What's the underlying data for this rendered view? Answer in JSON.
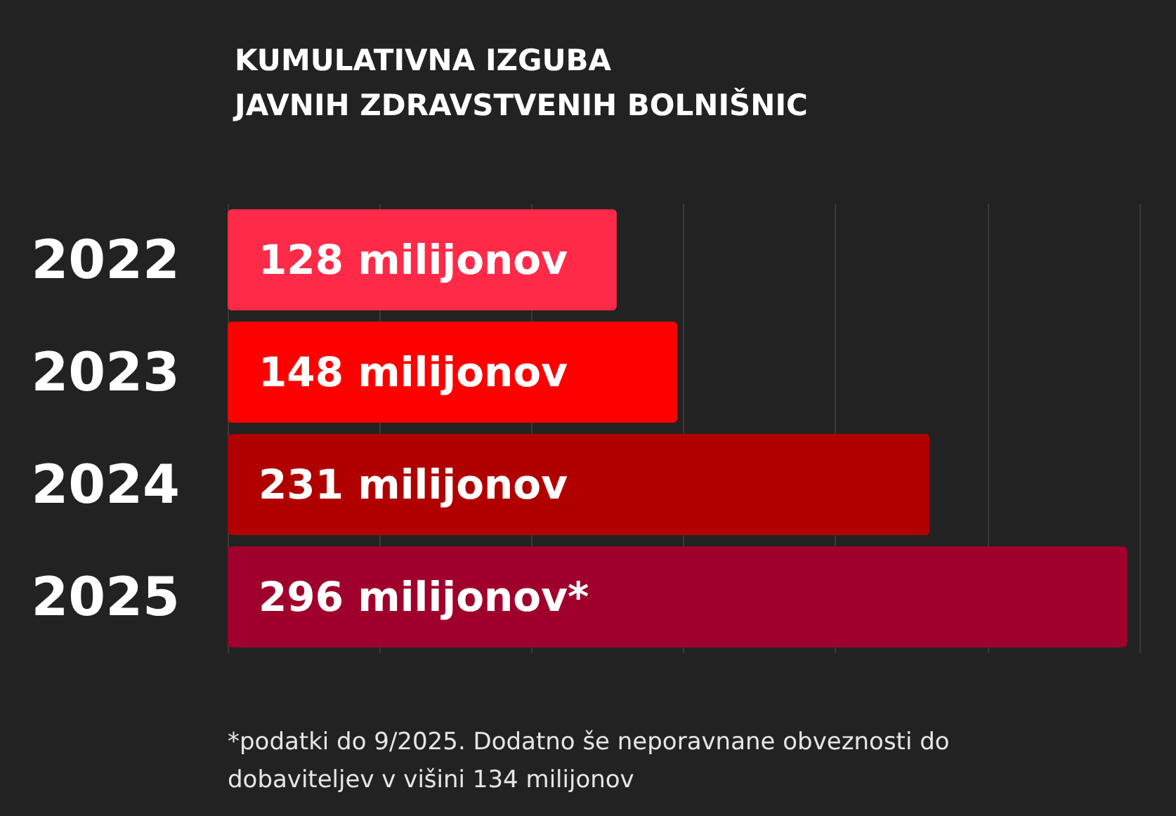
{
  "chart_data": {
    "type": "bar",
    "orientation": "horizontal",
    "title": "KUMULATIVNA IZGUBA\nJAVNIH ZDRAVSTVENIH BOLNIŠNIC",
    "categories": [
      "2022",
      "2023",
      "2024",
      "2025"
    ],
    "values": [
      128,
      148,
      231,
      296
    ],
    "colors": [
      "#ff2a48",
      "#ff0000",
      "#b00000",
      "#a0002c"
    ],
    "value_labels": [
      "128 milijonov",
      "148 milijonov",
      "231 milijonov",
      "296 milijonov*"
    ],
    "xlim": [
      0,
      300
    ],
    "xticks": [
      {
        "value": 0,
        "label": null
      },
      {
        "value": 50,
        "label": null
      },
      {
        "value": 100,
        "label": null
      },
      {
        "value": 150,
        "label": null
      },
      {
        "value": 200,
        "label": null
      },
      {
        "value": 250,
        "label": null
      },
      {
        "value": 300,
        "label": null
      }
    ],
    "grid": "x",
    "annotations": [
      "*podatki do 9/2025. Dodatno še neporavnane obveznosti do dobaviteljev v višini 134 milijonov"
    ]
  }
}
